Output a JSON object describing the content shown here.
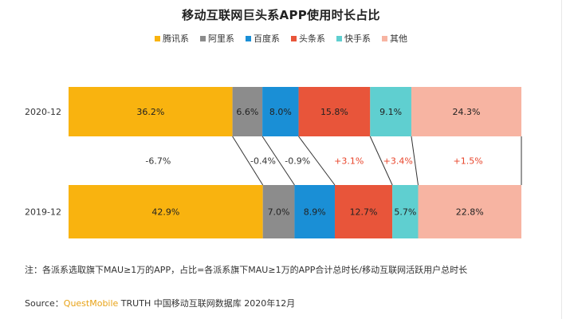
{
  "title": "移动互联网巨头系APP使用时长占比",
  "legend": [
    {
      "label": "腾讯系",
      "color": "#f9b30f"
    },
    {
      "label": "阿里系",
      "color": "#8c8c8c"
    },
    {
      "label": "百度系",
      "color": "#1a8fd6"
    },
    {
      "label": "头条系",
      "color": "#e8553a"
    },
    {
      "label": "快手系",
      "color": "#5fcfd0"
    },
    {
      "label": "其他",
      "color": "#f7b4a2"
    }
  ],
  "note": "注：各派系选取旗下MAU≥1万的APP，占比=各派系旗下MAU≥1万的APP合计总时长/移动互联网活跃用户总时长",
  "source": {
    "prefix": "Source：",
    "brand": "QuestMobile",
    "suffix": " TRUTH 中国移动互联网数据库 2020年12月"
  },
  "chart_data": {
    "type": "bar",
    "stacked": true,
    "orientation": "horizontal",
    "title": "移动互联网巨头系APP使用时长占比",
    "categories": [
      "2020-12",
      "2019-12"
    ],
    "series": [
      {
        "name": "腾讯系",
        "color": "#f9b30f",
        "values": [
          36.2,
          42.9
        ],
        "labels": [
          "36.2%",
          "42.9%"
        ]
      },
      {
        "name": "阿里系",
        "color": "#8c8c8c",
        "values": [
          6.6,
          7.0
        ],
        "labels": [
          "6.6%",
          "7.0%"
        ]
      },
      {
        "name": "百度系",
        "color": "#1a8fd6",
        "values": [
          8.0,
          8.9
        ],
        "labels": [
          "8.0%",
          "8.9%"
        ]
      },
      {
        "name": "头条系",
        "color": "#e8553a",
        "values": [
          15.8,
          12.7
        ],
        "labels": [
          "15.8%",
          "12.7%"
        ]
      },
      {
        "name": "快手系",
        "color": "#5fcfd0",
        "values": [
          9.1,
          5.7
        ],
        "labels": [
          "9.1%",
          "5.7%"
        ]
      },
      {
        "name": "其他",
        "color": "#f7b4a2",
        "values": [
          24.3,
          22.8
        ],
        "labels": [
          "24.3%",
          "22.8%"
        ]
      }
    ],
    "changes": [
      "-6.7%",
      "-0.4%",
      "-0.9%",
      "+3.1%",
      "+3.4%",
      "+1.5%"
    ],
    "change_colors": [
      "#333333",
      "#333333",
      "#333333",
      "#e8442a",
      "#e8442a",
      "#e8442a"
    ],
    "xlim": [
      0,
      100
    ],
    "legend_position": "top"
  }
}
